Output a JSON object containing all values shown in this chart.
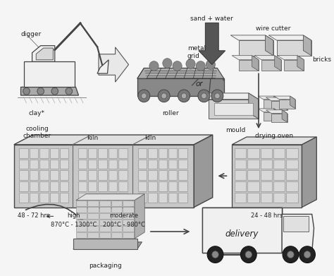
{
  "bg_color": "#f5f5f5",
  "fig_width": 4.74,
  "fig_height": 3.91,
  "dpi": 100,
  "labels": {
    "digger": "digger",
    "clay": "clay*",
    "metal_grid": "metal\ngrid",
    "roller": "roller",
    "sand_water": "sand + water",
    "wire_cutter": "wire cutter",
    "bricks": "bricks",
    "or": "or",
    "mould": "mould",
    "cooling_chamber": "cooling\nchamber",
    "kiln1": "kiln",
    "kiln2": "kiln",
    "drying_oven": "drying oven",
    "hrs_48_72": "48 - 72 hrs",
    "high": "high",
    "temp_high": "870°C - 1300°C",
    "moderate": "moderate",
    "temp_moderate": "200°C - 980°C",
    "hrs_24_48": "24 - 48 hrs",
    "packaging": "packaging",
    "delivery": "delivery"
  },
  "colors": {
    "text_color": "#222222",
    "edge_dark": "#444444",
    "fill_light": "#e0e0e0",
    "fill_mid": "#c0c0c0",
    "fill_dark": "#909090",
    "brick_face": "#c8c8c8",
    "brick_top": "#e8e8e8",
    "brick_side": "#a0a0a0",
    "arrow_color": "#555555",
    "building_face": "#c8c8c8",
    "building_top": "#e0e0e0",
    "building_side": "#999999"
  }
}
